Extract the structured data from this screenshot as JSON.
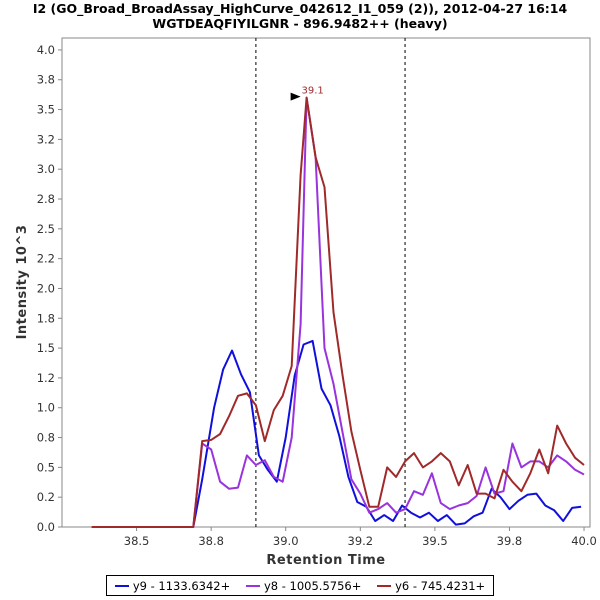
{
  "chart_data": {
    "type": "line",
    "title": "I2 (GO_Broad_BroadAssay_HighCurve_042612_I1_059 (2)), 2012-04-27 16:14",
    "subtitle": "WGTDEAQFIYILGNR - 896.9482++ (heavy)",
    "xlabel": "Retention Time",
    "ylabel": "Intensity 10^3",
    "xlim": [
      38.25,
      40.02
    ],
    "ylim": [
      0,
      4.1
    ],
    "xticks": [
      "38.5",
      "38.8",
      "39.0",
      "39.2",
      "39.5",
      "39.8",
      "40.0"
    ],
    "xtick_values": [
      38.5,
      38.75,
      39.0,
      39.25,
      39.5,
      39.75,
      40.0
    ],
    "yticks": [
      "0.0",
      "0.2",
      "0.5",
      "0.8",
      "1.0",
      "1.2",
      "1.5",
      "1.8",
      "2.0",
      "2.2",
      "2.5",
      "2.8",
      "3.0",
      "3.2",
      "3.5",
      "3.8",
      "4.0"
    ],
    "ytick_values": [
      0,
      0.25,
      0.5,
      0.75,
      1.0,
      1.25,
      1.5,
      1.75,
      2.0,
      2.25,
      2.5,
      2.75,
      3.0,
      3.25,
      3.5,
      3.75,
      4.0
    ],
    "vlines": [
      38.9,
      39.4
    ],
    "peak_annotation": {
      "label": "39.1",
      "x": 39.07,
      "y": 3.6
    },
    "series": [
      {
        "name": "y9 - 1133.6342+",
        "color": "#1010dd",
        "x": [
          38.35,
          38.69,
          38.72,
          38.76,
          38.79,
          38.82,
          38.85,
          38.88,
          38.91,
          38.94,
          38.97,
          39.0,
          39.03,
          39.06,
          39.09,
          39.12,
          39.15,
          39.18,
          39.21,
          39.24,
          39.27,
          39.3,
          39.33,
          39.36,
          39.39,
          39.42,
          39.45,
          39.48,
          39.51,
          39.54,
          39.57,
          39.6,
          39.63,
          39.66,
          39.69,
          39.72,
          39.75,
          39.78,
          39.81,
          39.84,
          39.87,
          39.9,
          39.93,
          39.96,
          39.99
        ],
        "y": [
          0,
          0,
          0.4,
          1.0,
          1.32,
          1.48,
          1.28,
          1.13,
          0.6,
          0.48,
          0.38,
          0.75,
          1.27,
          1.53,
          1.56,
          1.16,
          1.02,
          0.76,
          0.42,
          0.21,
          0.17,
          0.05,
          0.1,
          0.05,
          0.18,
          0.12,
          0.08,
          0.12,
          0.05,
          0.1,
          0.02,
          0.03,
          0.09,
          0.12,
          0.32,
          0.25,
          0.15,
          0.22,
          0.27,
          0.28,
          0.18,
          0.14,
          0.05,
          0.16,
          0.17
        ]
      },
      {
        "name": "y8 - 1005.5756+",
        "color": "#9933dd",
        "x": [
          38.35,
          38.69,
          38.72,
          38.75,
          38.78,
          38.81,
          38.84,
          38.87,
          38.9,
          38.93,
          38.96,
          38.99,
          39.02,
          39.05,
          39.07,
          39.1,
          39.13,
          39.16,
          39.19,
          39.22,
          39.25,
          39.28,
          39.31,
          39.34,
          39.37,
          39.4,
          39.43,
          39.46,
          39.49,
          39.52,
          39.55,
          39.58,
          39.61,
          39.64,
          39.67,
          39.7,
          39.73,
          39.76,
          39.79,
          39.82,
          39.85,
          39.88,
          39.91,
          39.94,
          39.97,
          40.0
        ],
        "y": [
          0,
          0,
          0.7,
          0.65,
          0.38,
          0.32,
          0.33,
          0.6,
          0.52,
          0.56,
          0.42,
          0.38,
          0.75,
          1.7,
          3.6,
          3.1,
          1.5,
          1.2,
          0.8,
          0.4,
          0.28,
          0.12,
          0.15,
          0.2,
          0.12,
          0.15,
          0.3,
          0.27,
          0.45,
          0.2,
          0.15,
          0.18,
          0.2,
          0.26,
          0.5,
          0.28,
          0.3,
          0.7,
          0.5,
          0.55,
          0.55,
          0.5,
          0.6,
          0.55,
          0.48,
          0.44
        ]
      },
      {
        "name": "y6 - 745.4231+",
        "color": "#a02a2a",
        "x": [
          38.35,
          38.69,
          38.72,
          38.75,
          38.78,
          38.81,
          38.84,
          38.87,
          38.9,
          38.93,
          38.96,
          38.99,
          39.02,
          39.05,
          39.07,
          39.1,
          39.13,
          39.16,
          39.19,
          39.22,
          39.25,
          39.28,
          39.31,
          39.34,
          39.37,
          39.4,
          39.43,
          39.46,
          39.49,
          39.52,
          39.55,
          39.58,
          39.61,
          39.64,
          39.67,
          39.7,
          39.73,
          39.76,
          39.79,
          39.82,
          39.85,
          39.88,
          39.91,
          39.94,
          39.97,
          40.0
        ],
        "y": [
          0,
          0,
          0.72,
          0.73,
          0.78,
          0.93,
          1.1,
          1.12,
          1.02,
          0.72,
          0.98,
          1.1,
          1.35,
          2.95,
          3.6,
          3.1,
          2.85,
          1.8,
          1.28,
          0.8,
          0.48,
          0.17,
          0.17,
          0.5,
          0.42,
          0.55,
          0.62,
          0.5,
          0.55,
          0.62,
          0.55,
          0.35,
          0.52,
          0.28,
          0.28,
          0.24,
          0.48,
          0.38,
          0.3,
          0.45,
          0.65,
          0.45,
          0.85,
          0.7,
          0.58,
          0.52
        ]
      }
    ]
  }
}
